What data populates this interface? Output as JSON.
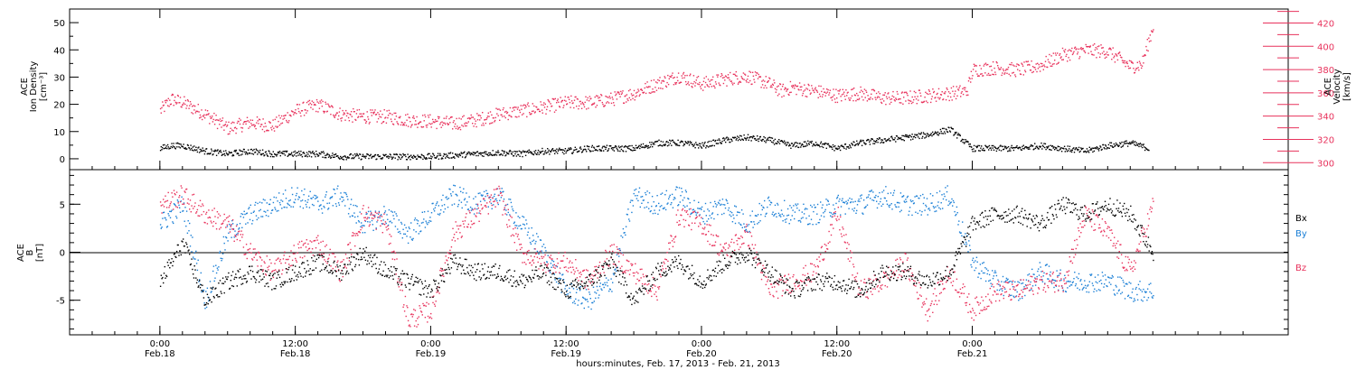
{
  "colors": {
    "black": "#000000",
    "blue": "#1a7fd6",
    "red": "#e8325c",
    "background": "#ffffff"
  },
  "chart_data": [
    {
      "type": "scatter",
      "panel": "top",
      "ylabel_left": [
        "ACE",
        "Ion Density",
        "[cm⁻³]"
      ],
      "ylabel_right": [
        "ACE",
        "Velocity",
        "[km/s]"
      ],
      "ylim_left": [
        -4,
        55
      ],
      "ylim_right": [
        294,
        432
      ],
      "yticks_left": [
        "0",
        "10",
        "20",
        "30",
        "40",
        "50"
      ],
      "yticks_right": [
        "300",
        "320",
        "340",
        "360",
        "380",
        "400",
        "420"
      ],
      "series": [
        {
          "color": "#000000",
          "axis": "left",
          "x_hours": [
            0,
            1,
            2,
            4,
            6,
            8,
            10,
            12,
            14,
            16,
            18,
            20,
            22,
            24,
            26,
            28,
            30,
            32,
            34,
            36,
            38,
            40,
            42,
            44,
            46,
            48,
            50,
            52,
            54,
            55,
            56,
            58,
            60,
            62,
            64,
            66,
            68,
            70,
            72,
            74,
            76,
            78,
            80,
            82,
            84,
            86,
            87.6
          ],
          "values": [
            4,
            5,
            5,
            3,
            2,
            3,
            2,
            2,
            2,
            1,
            1,
            1,
            1,
            1,
            1.5,
            2,
            2.5,
            2,
            3,
            3,
            4,
            4,
            4,
            6,
            6,
            5,
            7,
            8,
            7,
            6,
            5,
            6,
            4,
            6,
            7,
            8,
            9,
            11,
            4,
            4,
            4,
            5,
            4,
            3,
            5,
            6,
            4
          ]
        },
        {
          "color": "#e8325c",
          "axis": "right",
          "x_hours": [
            0,
            1,
            2,
            4,
            6,
            8,
            10,
            12,
            14,
            16,
            18,
            20,
            22,
            24,
            26,
            28,
            30,
            32,
            34,
            36,
            38,
            40,
            42,
            44,
            46,
            48,
            50,
            52,
            54,
            55,
            56,
            58,
            60,
            62,
            64,
            66,
            68,
            70,
            71.5,
            72,
            74,
            76,
            78,
            80,
            82,
            84,
            86,
            87,
            88
          ],
          "values": [
            345,
            355,
            352,
            342,
            330,
            335,
            332,
            345,
            350,
            342,
            340,
            340,
            337,
            336,
            334,
            337,
            342,
            345,
            348,
            352,
            352,
            355,
            360,
            368,
            375,
            368,
            372,
            375,
            368,
            362,
            365,
            362,
            358,
            360,
            356,
            356,
            358,
            360,
            362,
            380,
            382,
            380,
            384,
            393,
            397,
            396,
            383,
            385,
            418
          ]
        }
      ]
    },
    {
      "type": "scatter",
      "panel": "bottom",
      "ylabel": [
        "ACE",
        "B",
        "[nT]"
      ],
      "ylim": [
        -8.6,
        8.6
      ],
      "yticks": [
        "-5",
        "0",
        "5"
      ],
      "legend": [
        "Bx",
        "By",
        "Bz"
      ],
      "legend_placement": "right",
      "x_ticks": [
        {
          "time": "0:00",
          "date": "Feb.18"
        },
        {
          "time": "12:00",
          "date": "Feb.18"
        },
        {
          "time": "0:00",
          "date": "Feb.19"
        },
        {
          "time": "12:00",
          "date": "Feb.19"
        },
        {
          "time": "0:00",
          "date": "Feb.20"
        },
        {
          "time": "12:00",
          "date": "Feb.20"
        },
        {
          "time": "0:00",
          "date": "Feb.21"
        }
      ],
      "xlabel": "hours:minutes, Feb. 17, 2013 - Feb. 21, 2013",
      "series": [
        {
          "name": "Bx",
          "color": "#000000",
          "x_hours": [
            0,
            2,
            4,
            6,
            8,
            10,
            12,
            14,
            16,
            18,
            20,
            22,
            24,
            26,
            28,
            30,
            32,
            34,
            36,
            38,
            40,
            42,
            44,
            46,
            48,
            50,
            52,
            54,
            56,
            58,
            60,
            62,
            64,
            66,
            68,
            70,
            72,
            74,
            76,
            78,
            80,
            82,
            84,
            86,
            88
          ],
          "values": [
            -3,
            1,
            -5,
            -3,
            -2,
            -3,
            -2,
            -1,
            -2,
            0,
            -2,
            -3,
            -4,
            -1,
            -2,
            -2,
            -3,
            -2,
            -4,
            -3,
            -1,
            -5,
            -2,
            -1,
            -3,
            -1,
            0,
            -2,
            -4,
            -3,
            -3,
            -4,
            -2,
            -2,
            -3,
            -2,
            3,
            4,
            4,
            3,
            5,
            4,
            5,
            4,
            0
          ]
        },
        {
          "name": "By",
          "color": "#1a7fd6",
          "x_hours": [
            0,
            2,
            4,
            6,
            8,
            10,
            12,
            14,
            16,
            18,
            20,
            22,
            24,
            26,
            28,
            30,
            32,
            34,
            36,
            38,
            40,
            42,
            44,
            46,
            48,
            50,
            52,
            54,
            56,
            58,
            60,
            62,
            64,
            66,
            68,
            70,
            72,
            74,
            76,
            78,
            80,
            82,
            84,
            86,
            88
          ],
          "values": [
            3,
            5,
            -5,
            2,
            4,
            5,
            6,
            5,
            6,
            3,
            4,
            2,
            4,
            6,
            5,
            6,
            3,
            0,
            -4,
            -5,
            -3,
            6,
            5,
            6,
            4,
            5,
            3,
            5,
            4,
            4,
            5,
            5,
            6,
            5,
            5,
            6,
            -1,
            -3,
            -4,
            -2,
            -3,
            -3,
            -3,
            -4,
            -4
          ]
        },
        {
          "name": "Bz",
          "color": "#e8325c",
          "x_hours": [
            0,
            2,
            4,
            6,
            8,
            10,
            12,
            14,
            16,
            18,
            20,
            22,
            24,
            26,
            28,
            30,
            32,
            34,
            36,
            38,
            40,
            42,
            44,
            46,
            48,
            50,
            52,
            54,
            56,
            58,
            60,
            62,
            64,
            66,
            68,
            70,
            72,
            74,
            76,
            78,
            80,
            82,
            84,
            86,
            88
          ],
          "values": [
            5,
            6,
            4,
            3,
            0,
            -2,
            0,
            1,
            -2,
            4,
            3,
            -7,
            -6,
            2,
            4,
            6,
            0,
            -1,
            -1,
            -3,
            0,
            -2,
            -4,
            4,
            3,
            0,
            2,
            -4,
            -3,
            -2,
            4,
            -4,
            -3,
            -1,
            -6,
            -2,
            -6,
            -4,
            -4,
            -3,
            -3,
            4,
            2,
            -2,
            5
          ]
        }
      ]
    }
  ]
}
